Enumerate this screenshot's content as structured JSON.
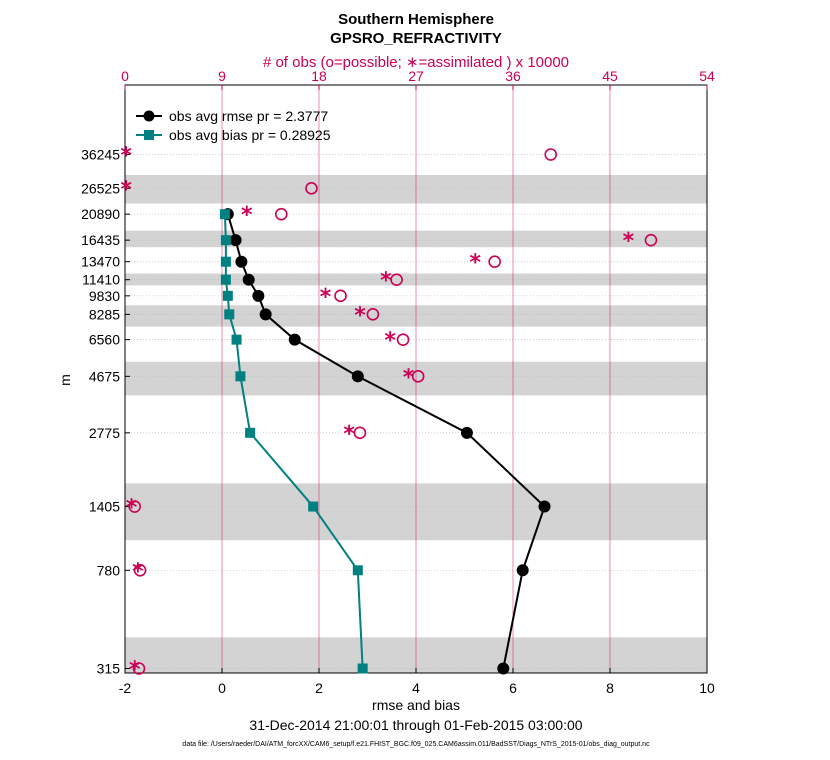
{
  "chart_data": {
    "type": "line",
    "title": "Southern Hemisphere",
    "subtitle": "GPSRO_REFRACTIVITY",
    "top_axis_label": "# of obs (o=possible; ∗=assimilated ) x 10000",
    "xlabel": "rmse and bias",
    "ylabel": "m",
    "date_range": "31-Dec-2014 21:00:01 through 01-Feb-2015 03:00:00",
    "footnote": "data file: /Users/raeder/DAI/ATM_forcXX/CAM6_setup/f.e21.FHIST_BGC.f09_025.CAM6assim.011/BadSST/Diags_NTrS_2015-01/obs_diag_output.nc",
    "xlim": [
      -2,
      10
    ],
    "xticks": [
      "-2",
      "0",
      "2",
      "4",
      "6",
      "8",
      "10"
    ],
    "top_xlim": [
      0,
      54
    ],
    "top_xticks": [
      "0",
      "9",
      "18",
      "27",
      "36",
      "45",
      "54"
    ],
    "levels": [
      "315",
      "780",
      "1405",
      "2775",
      "4675",
      "6560",
      "8285",
      "9830",
      "11410",
      "13470",
      "16435",
      "20890",
      "26525",
      "36245"
    ],
    "series": [
      {
        "name": "obs avg rmse pr = 2.3777",
        "color": "#000000",
        "values": [
          5.8,
          6.2,
          6.65,
          5.05,
          2.8,
          1.5,
          0.9,
          0.75,
          0.55,
          0.4,
          0.28,
          0.12,
          null,
          null
        ]
      },
      {
        "name": "obs avg bias pr = 0.28925",
        "color": "#008080",
        "values": [
          2.9,
          2.8,
          1.88,
          0.58,
          0.38,
          0.3,
          0.15,
          0.12,
          0.08,
          0.08,
          0.08,
          0.06,
          null,
          null
        ]
      }
    ],
    "obs_possible": [
      1.3,
      1.4,
      0.9,
      21.8,
      27.2,
      25.8,
      23.0,
      20.0,
      25.2,
      34.3,
      48.8,
      14.5,
      17.3,
      39.5
    ],
    "obs_assimilated": [
      0.9,
      1.2,
      0.6,
      20.8,
      26.3,
      24.6,
      21.8,
      18.6,
      24.2,
      32.5,
      46.7,
      11.3,
      0.1,
      0.1
    ],
    "shaded_bands": [
      [
        "180",
        "420"
      ],
      [
        "1030",
        "1740"
      ],
      [
        "3920",
        "5350"
      ],
      [
        "7400",
        "9010"
      ],
      [
        "10820",
        "12080"
      ],
      [
        "15400",
        "17950"
      ],
      [
        "23050",
        "30000"
      ]
    ],
    "colors": {
      "rmse": "#000000",
      "bias": "#008080",
      "obs": "#cc0055",
      "band": "#d3d3d3",
      "grid_top": "#cc0055"
    }
  }
}
